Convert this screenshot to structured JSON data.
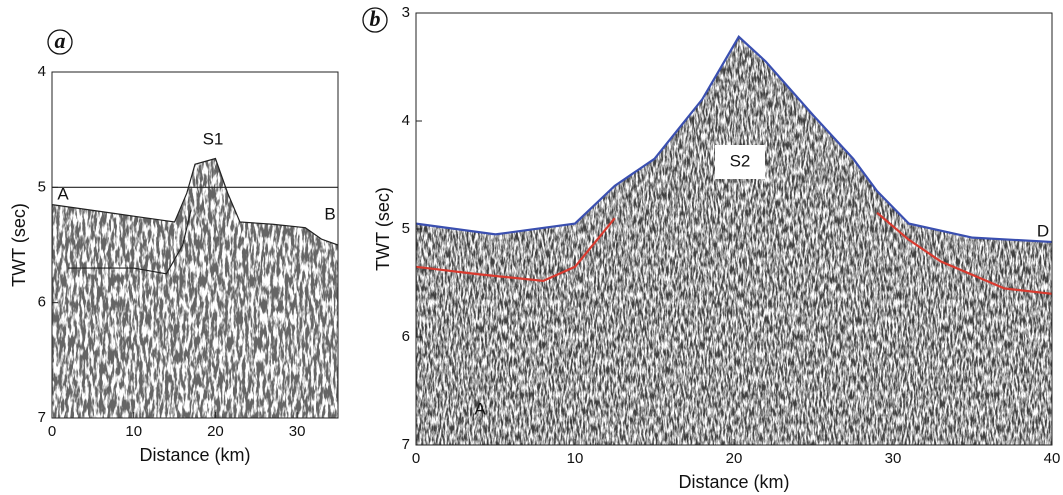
{
  "chart_data": [
    {
      "type": "seismic",
      "panel": "a",
      "xlabel": "Distance (km)",
      "ylabel": "TWT (sec)",
      "xlim": [
        0,
        35
      ],
      "ylim": [
        4,
        7
      ],
      "y_inverted": true,
      "xticks": [
        0,
        10,
        20,
        30
      ],
      "yticks": [
        4,
        5,
        6,
        7
      ],
      "hline": 5,
      "annotations": [
        "S1",
        "A",
        "B"
      ],
      "series": [
        {
          "color": "#222222",
          "x": [
            0,
            5,
            10,
            15,
            16.5,
            17.5,
            20,
            21.5,
            23,
            27,
            31,
            33,
            35
          ],
          "values": [
            5.15,
            5.2,
            5.25,
            5.3,
            5.05,
            4.8,
            4.75,
            5.05,
            5.3,
            5.32,
            5.35,
            5.45,
            5.5
          ]
        },
        {
          "color": "#222222",
          "x": [
            2,
            10,
            14,
            16,
            17
          ],
          "values": [
            5.7,
            5.7,
            5.75,
            5.5,
            5.2
          ]
        }
      ]
    },
    {
      "type": "seismic",
      "panel": "b",
      "xlabel": "Distance (km)",
      "ylabel": "TWT (sec)",
      "xlim": [
        0,
        40
      ],
      "ylim": [
        3,
        7
      ],
      "y_inverted": true,
      "xticks": [
        0,
        10,
        20,
        30,
        40
      ],
      "yticks": [
        3,
        4,
        5,
        6,
        7
      ],
      "annotations": [
        "S2",
        "D",
        "A"
      ],
      "series": [
        {
          "color": "#3a4fb0",
          "x": [
            0,
            5,
            10,
            12.5,
            15,
            18,
            20.3,
            22,
            25,
            27.5,
            29,
            31,
            35,
            40
          ],
          "values": [
            4.95,
            5.05,
            4.95,
            4.6,
            4.35,
            3.8,
            3.22,
            3.45,
            3.95,
            4.35,
            4.65,
            4.95,
            5.08,
            5.12
          ]
        },
        {
          "color": "#d93a2f",
          "x": [
            0,
            4,
            8,
            10,
            12.5,
            null,
            29,
            31,
            33,
            37,
            40
          ],
          "values": [
            5.35,
            5.42,
            5.48,
            5.35,
            4.9,
            null,
            4.85,
            5.1,
            5.3,
            5.55,
            5.6
          ]
        }
      ]
    }
  ]
}
